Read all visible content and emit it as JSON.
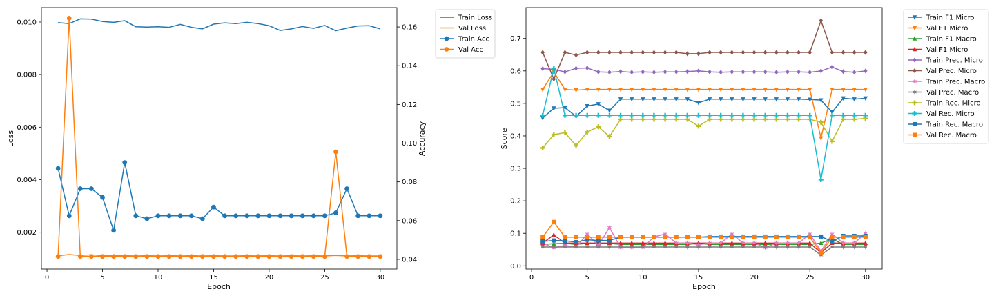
{
  "chart_data": [
    {
      "type": "line",
      "xlabel": "Epoch",
      "ylabel": "Loss",
      "ylabel_right": "Accuracy",
      "xlim": [
        -0.5,
        31.5
      ],
      "ylim": [
        0.0006,
        0.01055
      ],
      "ylim_right": [
        0.035,
        0.17
      ],
      "xticks": [
        "0",
        "5",
        "10",
        "15",
        "20",
        "25",
        "30"
      ],
      "yticks": [
        "0.002",
        "0.004",
        "0.006",
        "0.008",
        "0.010"
      ],
      "yticks_right": [
        "0.04",
        "0.06",
        "0.08",
        "0.10",
        "0.12",
        "0.14",
        "0.16"
      ],
      "legend_position": "outside-top-right",
      "x": [
        1,
        2,
        3,
        4,
        5,
        6,
        7,
        8,
        9,
        10,
        11,
        12,
        13,
        14,
        15,
        16,
        17,
        18,
        19,
        20,
        21,
        22,
        23,
        24,
        25,
        26,
        27,
        28,
        29,
        30
      ],
      "series": [
        {
          "name": "Train Loss",
          "axis": "left",
          "color": "#1f77b4",
          "marker": "none",
          "values": [
            0.00998,
            0.00994,
            0.01012,
            0.01011,
            0.01002,
            0.00999,
            0.01005,
            0.00982,
            0.00981,
            0.00982,
            0.0098,
            0.00991,
            0.0098,
            0.00974,
            0.00992,
            0.00997,
            0.00994,
            0.00999,
            0.00994,
            0.00986,
            0.00968,
            0.00974,
            0.00983,
            0.00976,
            0.00987,
            0.00967,
            0.00977,
            0.00985,
            0.00986,
            0.00974
          ]
        },
        {
          "name": "Val Loss",
          "axis": "left",
          "color": "#ff7f0e",
          "marker": "none",
          "values": [
            0.00111,
            0.00115,
            0.00112,
            0.00114,
            0.00111,
            0.00112,
            0.00111,
            0.0011,
            0.00111,
            0.0011,
            0.00111,
            0.0011,
            0.00111,
            0.0011,
            0.00111,
            0.0011,
            0.0011,
            0.00111,
            0.0011,
            0.00111,
            0.0011,
            0.00111,
            0.0011,
            0.00111,
            0.0011,
            0.00112,
            0.0011,
            0.00111,
            0.0011,
            0.0011
          ]
        },
        {
          "name": "Train Acc",
          "axis": "right",
          "color": "#1f77b4",
          "marker": "circle",
          "values": [
            0.087,
            0.0625,
            0.0765,
            0.0765,
            0.072,
            0.055,
            0.09,
            0.0625,
            0.061,
            0.0625,
            0.0625,
            0.0625,
            0.0625,
            0.061,
            0.067,
            0.0625,
            0.0625,
            0.0625,
            0.0625,
            0.0625,
            0.0625,
            0.0625,
            0.0625,
            0.0625,
            0.0625,
            0.064,
            0.0765,
            0.0625,
            0.0625,
            0.0625
          ]
        },
        {
          "name": "Val Acc",
          "axis": "right",
          "color": "#ff7f0e",
          "marker": "circle",
          "values": [
            0.0415,
            0.1645,
            0.0415,
            0.0415,
            0.0415,
            0.0415,
            0.0415,
            0.0415,
            0.0415,
            0.0415,
            0.0415,
            0.0415,
            0.0415,
            0.0415,
            0.0415,
            0.0415,
            0.0415,
            0.0415,
            0.0415,
            0.0415,
            0.0415,
            0.0415,
            0.0415,
            0.0415,
            0.0415,
            0.0955,
            0.0415,
            0.0415,
            0.0415,
            0.0415
          ]
        }
      ]
    },
    {
      "type": "line",
      "xlabel": "Epoch",
      "ylabel": "Score",
      "xlim": [
        -0.5,
        31.5
      ],
      "ylim": [
        -0.01,
        0.795
      ],
      "xticks": [
        "0",
        "5",
        "10",
        "15",
        "20",
        "25",
        "30"
      ],
      "yticks": [
        "0.0",
        "0.1",
        "0.2",
        "0.3",
        "0.4",
        "0.5",
        "0.6",
        "0.7"
      ],
      "legend_position": "outside-top-right",
      "x": [
        1,
        2,
        3,
        4,
        5,
        6,
        7,
        8,
        9,
        10,
        11,
        12,
        13,
        14,
        15,
        16,
        17,
        18,
        19,
        20,
        21,
        22,
        23,
        24,
        25,
        26,
        27,
        28,
        29,
        30
      ],
      "series": [
        {
          "name": "Train F1 Micro",
          "color": "#1f77b4",
          "marker": "tri_down",
          "values": [
            0.455,
            0.485,
            0.487,
            0.46,
            0.492,
            0.498,
            0.478,
            0.513,
            0.513,
            0.513,
            0.513,
            0.513,
            0.513,
            0.513,
            0.502,
            0.513,
            0.513,
            0.513,
            0.513,
            0.513,
            0.513,
            0.513,
            0.513,
            0.513,
            0.512,
            0.51,
            0.473,
            0.516,
            0.513,
            0.516
          ]
        },
        {
          "name": "Val F1 Micro",
          "color": "#ff7f0e",
          "marker": "tri_down",
          "values": [
            0.543,
            0.597,
            0.543,
            0.541,
            0.543,
            0.543,
            0.543,
            0.543,
            0.543,
            0.543,
            0.543,
            0.543,
            0.543,
            0.543,
            0.543,
            0.543,
            0.543,
            0.543,
            0.543,
            0.543,
            0.543,
            0.543,
            0.543,
            0.543,
            0.543,
            0.393,
            0.543,
            0.543,
            0.543,
            0.543
          ]
        },
        {
          "name": "Train F1 Macro",
          "color": "#2ca02c",
          "marker": "tri_up",
          "values": [
            0.066,
            0.068,
            0.069,
            0.066,
            0.069,
            0.068,
            0.069,
            0.066,
            0.066,
            0.066,
            0.066,
            0.066,
            0.066,
            0.066,
            0.069,
            0.066,
            0.066,
            0.066,
            0.066,
            0.066,
            0.066,
            0.066,
            0.066,
            0.066,
            0.066,
            0.07,
            0.083,
            0.066,
            0.066,
            0.066
          ]
        },
        {
          "name": "Val F1 Micro",
          "color": "#d62728",
          "marker": "tri_up",
          "values": [
            0.07,
            0.095,
            0.07,
            0.07,
            0.07,
            0.07,
            0.07,
            0.07,
            0.07,
            0.07,
            0.07,
            0.07,
            0.07,
            0.07,
            0.07,
            0.07,
            0.07,
            0.07,
            0.07,
            0.07,
            0.07,
            0.07,
            0.07,
            0.07,
            0.07,
            0.04,
            0.07,
            0.07,
            0.07,
            0.07
          ]
        },
        {
          "name": "Train Prec. Micro",
          "color": "#9467bd",
          "marker": "diamond",
          "values": [
            0.607,
            0.605,
            0.597,
            0.608,
            0.609,
            0.597,
            0.596,
            0.598,
            0.596,
            0.597,
            0.596,
            0.597,
            0.597,
            0.598,
            0.6,
            0.597,
            0.596,
            0.597,
            0.597,
            0.597,
            0.597,
            0.596,
            0.597,
            0.597,
            0.596,
            0.6,
            0.612,
            0.598,
            0.596,
            0.6
          ]
        },
        {
          "name": "Val Prec. Micro",
          "color": "#8c564b",
          "marker": "diamond",
          "values": [
            0.657,
            0.575,
            0.657,
            0.649,
            0.657,
            0.657,
            0.657,
            0.657,
            0.657,
            0.657,
            0.657,
            0.657,
            0.657,
            0.653,
            0.653,
            0.657,
            0.657,
            0.657,
            0.657,
            0.657,
            0.657,
            0.657,
            0.657,
            0.657,
            0.657,
            0.755,
            0.657,
            0.657,
            0.657,
            0.657
          ]
        },
        {
          "name": "Train Prec. Macro",
          "color": "#e377c2",
          "marker": "star",
          "values": [
            0.07,
            0.055,
            0.063,
            0.057,
            0.098,
            0.063,
            0.118,
            0.056,
            0.056,
            0.056,
            0.089,
            0.098,
            0.07,
            0.07,
            0.065,
            0.07,
            0.07,
            0.098,
            0.07,
            0.07,
            0.056,
            0.07,
            0.07,
            0.07,
            0.098,
            0.045,
            0.098,
            0.07,
            0.07,
            0.1
          ]
        },
        {
          "name": "Val Prec. Macro",
          "color": "#7f7f7f",
          "marker": "star",
          "values": [
            0.058,
            0.058,
            0.058,
            0.058,
            0.058,
            0.058,
            0.058,
            0.058,
            0.058,
            0.058,
            0.058,
            0.058,
            0.058,
            0.058,
            0.058,
            0.058,
            0.058,
            0.058,
            0.058,
            0.058,
            0.058,
            0.058,
            0.058,
            0.058,
            0.058,
            0.033,
            0.058,
            0.058,
            0.058,
            0.058
          ]
        },
        {
          "name": "Train Rec. Micro",
          "color": "#bcbd22",
          "marker": "plus",
          "values": [
            0.363,
            0.404,
            0.41,
            0.37,
            0.412,
            0.428,
            0.398,
            0.451,
            0.451,
            0.451,
            0.451,
            0.451,
            0.451,
            0.451,
            0.43,
            0.451,
            0.451,
            0.451,
            0.451,
            0.451,
            0.451,
            0.451,
            0.451,
            0.451,
            0.451,
            0.442,
            0.383,
            0.451,
            0.451,
            0.454
          ]
        },
        {
          "name": "Val Rec. Micro",
          "color": "#17becf",
          "marker": "plus",
          "values": [
            0.463,
            0.608,
            0.463,
            0.463,
            0.463,
            0.463,
            0.463,
            0.463,
            0.463,
            0.463,
            0.463,
            0.463,
            0.463,
            0.463,
            0.463,
            0.463,
            0.463,
            0.463,
            0.463,
            0.463,
            0.463,
            0.463,
            0.463,
            0.463,
            0.463,
            0.265,
            0.463,
            0.463,
            0.463,
            0.463
          ]
        },
        {
          "name": "Train Rec. Macro",
          "color": "#1f77b4",
          "marker": "square",
          "values": [
            0.075,
            0.078,
            0.077,
            0.073,
            0.08,
            0.078,
            0.078,
            0.088,
            0.088,
            0.088,
            0.088,
            0.088,
            0.088,
            0.088,
            0.088,
            0.09,
            0.09,
            0.09,
            0.09,
            0.09,
            0.09,
            0.09,
            0.09,
            0.09,
            0.09,
            0.09,
            0.075,
            0.092,
            0.092,
            0.092
          ]
        },
        {
          "name": "Val Rec. Macro",
          "color": "#ff7f0e",
          "marker": "square",
          "values": [
            0.088,
            0.135,
            0.088,
            0.088,
            0.088,
            0.088,
            0.088,
            0.088,
            0.088,
            0.088,
            0.088,
            0.088,
            0.088,
            0.088,
            0.088,
            0.088,
            0.088,
            0.088,
            0.088,
            0.088,
            0.088,
            0.088,
            0.088,
            0.088,
            0.088,
            0.04,
            0.088,
            0.088,
            0.088,
            0.088
          ]
        }
      ]
    }
  ]
}
